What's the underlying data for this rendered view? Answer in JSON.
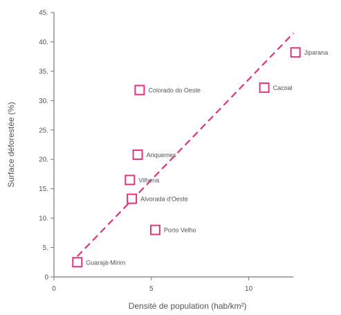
{
  "chart_data": {
    "type": "scatter",
    "xlabel": "Densité de population (hab/km²)",
    "ylabel": "Surface déforestée (%)",
    "xlim": [
      0,
      12.5
    ],
    "ylim": [
      0,
      45
    ],
    "x_ticks": [
      0,
      5,
      10
    ],
    "y_ticks": [
      0,
      5,
      10,
      15,
      20,
      25,
      30,
      35,
      40,
      45
    ],
    "grid": false,
    "colors": {
      "marker": "#e0347a",
      "trendline": "#e0347a",
      "axis": "#777777",
      "text": "#555555"
    },
    "points": [
      {
        "label": "Jiparana",
        "x": 12.4,
        "y": 38.2
      },
      {
        "label": "Cacoal",
        "x": 10.8,
        "y": 32.2
      },
      {
        "label": "Colorado do Oeste",
        "x": 4.4,
        "y": 31.8
      },
      {
        "label": "Ariquemes",
        "x": 4.3,
        "y": 20.8
      },
      {
        "label": "Vilhena",
        "x": 3.9,
        "y": 16.5
      },
      {
        "label": "Alvorada d'Oeste",
        "x": 4.0,
        "y": 13.3
      },
      {
        "label": "Porto Velho",
        "x": 5.2,
        "y": 8.0
      },
      {
        "label": "Guarajá-Mirim",
        "x": 1.2,
        "y": 2.5
      }
    ],
    "trendline": {
      "style": "dashed",
      "from": {
        "x": 1.2,
        "y": 3.5
      },
      "to": {
        "x": 12.3,
        "y": 41.5
      }
    }
  }
}
